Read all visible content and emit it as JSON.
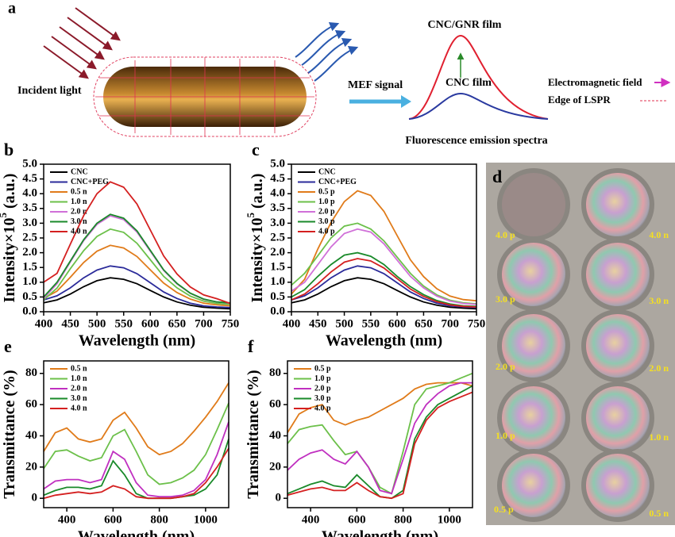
{
  "diagram": {
    "panel": "a",
    "incident": "Incident light",
    "signal": "MEF signal",
    "top_film": "CNC/GNR film",
    "bottom_film": "CNC film",
    "spectra": "Fluorescence emission spectra",
    "field": "Electromagnetic field",
    "edge": "Edge of LSPR"
  },
  "photo": {
    "panel": "d",
    "labels": [
      "4.0 p",
      "4.0 n",
      "3.0 p",
      "3.0 n",
      "2.0 p",
      "2.0 n",
      "1.0 p",
      "1.0 n",
      "0.5 p",
      "0.5 n"
    ]
  },
  "chart_data": [
    {
      "type": "line",
      "panel": "b",
      "x_label": "Wavelength (nm)",
      "y_label": "Intensity×10",
      "y_label_sup": "5",
      "y_label_unit": " (a.u.)",
      "x": [
        400,
        425,
        450,
        475,
        500,
        525,
        550,
        575,
        600,
        625,
        650,
        675,
        700,
        725,
        750
      ],
      "xlim": [
        400,
        750
      ],
      "xticks": [
        400,
        450,
        500,
        550,
        600,
        650,
        700,
        750
      ],
      "ylim": [
        0,
        5
      ],
      "yticks": [
        {
          "value": 0,
          "label": "0.0"
        },
        {
          "value": 0.5,
          "label": "0.5"
        },
        {
          "value": 1,
          "label": "1.0"
        },
        {
          "value": 1.5,
          "label": "1.5"
        },
        {
          "value": 2,
          "label": "2.0"
        },
        {
          "value": 2.5,
          "label": "2.5"
        },
        {
          "value": 3,
          "label": "3.0"
        },
        {
          "value": 3.5,
          "label": "3.5"
        },
        {
          "value": 4,
          "label": "4.0"
        },
        {
          "value": 4.5,
          "label": "4.5"
        },
        {
          "value": 5,
          "label": "5.0"
        }
      ],
      "series": [
        {
          "name": "CNC",
          "color": "#000000",
          "values": [
            0.3,
            0.4,
            0.6,
            0.85,
            1.05,
            1.15,
            1.1,
            0.95,
            0.72,
            0.5,
            0.33,
            0.22,
            0.15,
            0.12,
            0.1
          ]
        },
        {
          "name": "CNC+PEG",
          "color": "#2b2b9a",
          "values": [
            0.4,
            0.54,
            0.81,
            1.15,
            1.41,
            1.55,
            1.49,
            1.29,
            0.98,
            0.67,
            0.45,
            0.29,
            0.2,
            0.16,
            0.14
          ]
        },
        {
          "name": "0.5 n",
          "color": "#e07b1a",
          "values": [
            0.45,
            0.7,
            1.17,
            1.67,
            2.05,
            2.25,
            2.16,
            1.87,
            1.42,
            0.97,
            0.65,
            0.43,
            0.29,
            0.23,
            0.2
          ]
        },
        {
          "name": "1.0 n",
          "color": "#6cc04a",
          "values": [
            0.4,
            0.8,
            1.46,
            2.07,
            2.55,
            2.8,
            2.69,
            2.32,
            1.76,
            1.2,
            0.81,
            0.53,
            0.36,
            0.28,
            0.25
          ]
        },
        {
          "name": "2.0 n",
          "color": "#d070d8",
          "values": [
            0.45,
            0.95,
            1.69,
            2.41,
            2.96,
            3.25,
            3.12,
            2.7,
            2.05,
            1.4,
            0.94,
            0.62,
            0.42,
            0.33,
            0.29
          ]
        },
        {
          "name": "3.0 n",
          "color": "#1a8a2a",
          "values": [
            0.5,
            1.0,
            1.72,
            2.44,
            3.0,
            3.3,
            3.17,
            2.74,
            2.08,
            1.42,
            0.96,
            0.63,
            0.43,
            0.33,
            0.3
          ]
        },
        {
          "name": "4.0 n",
          "color": "#d42020",
          "values": [
            1.0,
            1.3,
            2.29,
            3.26,
            4.0,
            4.4,
            4.22,
            3.65,
            2.77,
            1.89,
            1.28,
            0.84,
            0.57,
            0.44,
            0.28
          ]
        }
      ]
    },
    {
      "type": "line",
      "panel": "c",
      "x_label": "Wavelength (nm)",
      "y_label": "Intensity×10",
      "y_label_sup": "5",
      "y_label_unit": " (a.u.)",
      "x": [
        400,
        425,
        450,
        475,
        500,
        525,
        550,
        575,
        600,
        625,
        650,
        675,
        700,
        725,
        750
      ],
      "xlim": [
        400,
        750
      ],
      "xticks": [
        400,
        450,
        500,
        550,
        600,
        650,
        700,
        750
      ],
      "ylim": [
        0,
        5
      ],
      "yticks": [
        {
          "value": 0,
          "label": "0.0"
        },
        {
          "value": 0.5,
          "label": "0.5"
        },
        {
          "value": 1,
          "label": "1.0"
        },
        {
          "value": 1.5,
          "label": "1.5"
        },
        {
          "value": 2,
          "label": "2.0"
        },
        {
          "value": 2.5,
          "label": "2.5"
        },
        {
          "value": 3,
          "label": "3.0"
        },
        {
          "value": 3.5,
          "label": "3.5"
        },
        {
          "value": 4,
          "label": "4.0"
        },
        {
          "value": 4.5,
          "label": "4.5"
        },
        {
          "value": 5,
          "label": "5.0"
        }
      ],
      "series": [
        {
          "name": "CNC",
          "color": "#000000",
          "values": [
            0.3,
            0.4,
            0.6,
            0.85,
            1.05,
            1.15,
            1.1,
            0.95,
            0.72,
            0.5,
            0.33,
            0.22,
            0.15,
            0.12,
            0.1
          ]
        },
        {
          "name": "CNC+PEG",
          "color": "#2b2b9a",
          "values": [
            0.4,
            0.54,
            0.81,
            1.15,
            1.41,
            1.55,
            1.49,
            1.29,
            0.98,
            0.67,
            0.45,
            0.29,
            0.2,
            0.16,
            0.14
          ]
        },
        {
          "name": "0.5 p",
          "color": "#e07b1a",
          "values": [
            0.6,
            1.1,
            2.13,
            3.03,
            3.73,
            4.1,
            3.94,
            3.4,
            2.58,
            1.76,
            1.19,
            0.78,
            0.53,
            0.41,
            0.37
          ]
        },
        {
          "name": "1.0 p",
          "color": "#6cc04a",
          "values": [
            0.9,
            1.3,
            1.9,
            2.5,
            2.9,
            3.0,
            2.8,
            2.4,
            1.85,
            1.3,
            0.87,
            0.57,
            0.39,
            0.3,
            0.27
          ]
        },
        {
          "name": "2.0 p",
          "color": "#d070d8",
          "values": [
            0.7,
            1.0,
            1.6,
            2.2,
            2.65,
            2.8,
            2.7,
            2.3,
            1.75,
            1.2,
            0.81,
            0.53,
            0.36,
            0.28,
            0.25
          ]
        },
        {
          "name": "3.0 p",
          "color": "#1a8a2a",
          "values": [
            0.5,
            0.75,
            1.2,
            1.6,
            1.92,
            2.0,
            1.88,
            1.6,
            1.2,
            0.85,
            0.58,
            0.38,
            0.26,
            0.2,
            0.18
          ]
        },
        {
          "name": "4.0 p",
          "color": "#d42020",
          "values": [
            0.4,
            0.6,
            0.95,
            1.35,
            1.68,
            1.8,
            1.72,
            1.48,
            1.12,
            0.77,
            0.52,
            0.34,
            0.23,
            0.18,
            0.16
          ]
        }
      ]
    },
    {
      "type": "line",
      "panel": "e",
      "x_label": "Wavelength (nm)",
      "y_label": "Transmittance (%)",
      "x": [
        300,
        350,
        400,
        450,
        500,
        550,
        600,
        650,
        700,
        750,
        800,
        850,
        900,
        950,
        1000,
        1050,
        1100
      ],
      "xlim": [
        300,
        1100
      ],
      "xticks": [
        400,
        600,
        800,
        1000
      ],
      "ylim": [
        -6,
        88
      ],
      "yticks": [
        0,
        20,
        40,
        60,
        80
      ],
      "series": [
        {
          "name": "0.5 n",
          "color": "#e07b1a",
          "values": [
            30,
            42,
            45,
            38,
            36,
            38,
            50,
            55,
            45,
            33,
            28,
            30,
            35,
            43,
            52,
            62,
            74
          ]
        },
        {
          "name": "1.0 n",
          "color": "#6cc04a",
          "values": [
            19,
            30,
            31,
            27,
            24,
            26,
            40,
            44,
            30,
            15,
            9,
            10,
            13,
            18,
            28,
            44,
            61
          ]
        },
        {
          "name": "2.0 n",
          "color": "#c030c0",
          "values": [
            6,
            11,
            12,
            12,
            10,
            12,
            30,
            25,
            10,
            2,
            1,
            1,
            2,
            5,
            12,
            28,
            49
          ]
        },
        {
          "name": "3.0 n",
          "color": "#1a8a2a",
          "values": [
            2,
            5,
            7,
            7,
            6,
            8,
            24,
            15,
            3,
            0,
            0,
            0,
            1,
            2,
            6,
            15,
            38
          ]
        },
        {
          "name": "4.0 n",
          "color": "#d42020",
          "values": [
            0,
            2,
            3,
            4,
            3,
            4,
            8,
            6,
            1,
            0,
            0,
            0,
            1,
            3,
            10,
            20,
            32
          ]
        }
      ]
    },
    {
      "type": "line",
      "panel": "f",
      "x_label": "Wavelength (nm)",
      "y_label": "Transmittance (%)",
      "x": [
        300,
        350,
        400,
        450,
        500,
        550,
        600,
        650,
        700,
        750,
        800,
        850,
        900,
        950,
        1000,
        1050,
        1100
      ],
      "xlim": [
        300,
        1100
      ],
      "xticks": [
        400,
        600,
        800,
        1000
      ],
      "ylim": [
        -6,
        88
      ],
      "yticks": [
        0,
        20,
        40,
        60,
        80
      ],
      "series": [
        {
          "name": "0.5 p",
          "color": "#e07b1a",
          "values": [
            42,
            54,
            58,
            60,
            50,
            47,
            50,
            52,
            56,
            60,
            64,
            70,
            73,
            74,
            74,
            74,
            72
          ]
        },
        {
          "name": "1.0 p",
          "color": "#6cc04a",
          "values": [
            35,
            44,
            46,
            47,
            37,
            28,
            30,
            20,
            7,
            3,
            30,
            60,
            70,
            72,
            74,
            77,
            80
          ]
        },
        {
          "name": "2.0 p",
          "color": "#c030c0",
          "values": [
            18,
            25,
            29,
            31,
            25,
            22,
            30,
            20,
            5,
            3,
            25,
            48,
            60,
            67,
            72,
            74,
            74
          ]
        },
        {
          "name": "3.0 p",
          "color": "#1a8a2a",
          "values": [
            3,
            6,
            9,
            11,
            8,
            7,
            15,
            8,
            1,
            0,
            5,
            38,
            52,
            60,
            64,
            68,
            72
          ]
        },
        {
          "name": "4.0 p",
          "color": "#d42020",
          "values": [
            2,
            4,
            6,
            7,
            5,
            5,
            10,
            5,
            1,
            0,
            3,
            35,
            50,
            58,
            62,
            65,
            68
          ]
        }
      ]
    }
  ]
}
